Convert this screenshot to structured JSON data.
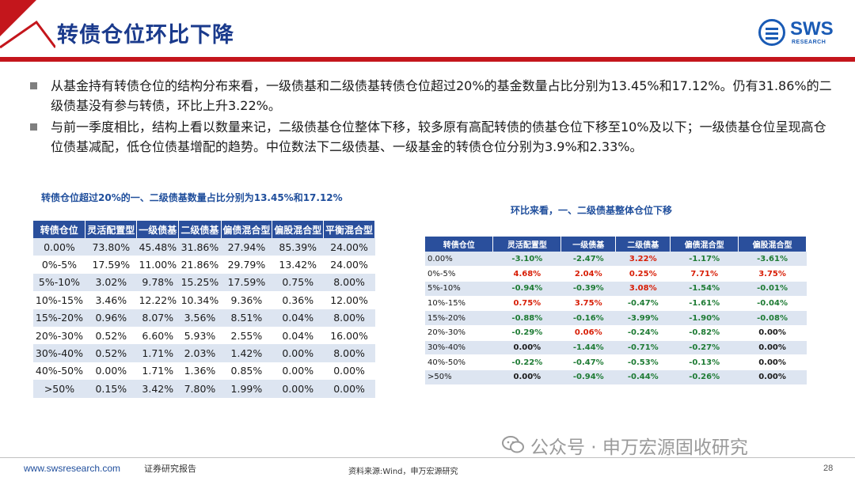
{
  "header": {
    "title": "转债仓位环比下降",
    "logo_text": "SWS",
    "logo_sub": "RESEARCH"
  },
  "bullets": [
    "从基金持有转债仓位的结构分布来看，一级债基和二级债基转债仓位超过20%的基金数量占比分别为13.45%和17.12%。仍有31.86%的二级债基没有参与转债，环比上升3.22%。",
    "与前一季度相比，结构上看以数量来记，二级债基仓位整体下移，较多原有高配转债的债基仓位下移至10%及以下；一级债基仓位呈现高仓位债基减配，低仓位债基增配的趋势。中位数法下二级债基、一级基金的转债仓位分别为3.9%和2.33%。"
  ],
  "left_table": {
    "title": "转债仓位超过20%的一、二级债基数量占比分别为13.45%和17.12%",
    "headers": [
      "转债仓位",
      "灵活配置型",
      "一级债基",
      "二级债基",
      "偏债混合型",
      "偏股混合型",
      "平衡混合型"
    ],
    "rows": [
      [
        "0.00%",
        "73.80%",
        "45.48%",
        "31.86%",
        "27.94%",
        "85.39%",
        "24.00%"
      ],
      [
        "0%-5%",
        "17.59%",
        "11.00%",
        "21.86%",
        "29.79%",
        "13.42%",
        "24.00%"
      ],
      [
        "5%-10%",
        "3.02%",
        "9.78%",
        "15.25%",
        "17.59%",
        "0.75%",
        "8.00%"
      ],
      [
        "10%-15%",
        "3.46%",
        "12.22%",
        "10.34%",
        "9.36%",
        "0.36%",
        "12.00%"
      ],
      [
        "15%-20%",
        "0.96%",
        "8.07%",
        "3.56%",
        "8.51%",
        "0.04%",
        "8.00%"
      ],
      [
        "20%-30%",
        "0.52%",
        "6.60%",
        "5.93%",
        "2.55%",
        "0.04%",
        "16.00%"
      ],
      [
        "30%-40%",
        "0.52%",
        "1.71%",
        "2.03%",
        "1.42%",
        "0.00%",
        "8.00%"
      ],
      [
        "40%-50%",
        "0.00%",
        "1.71%",
        "1.36%",
        "0.85%",
        "0.00%",
        "0.00%"
      ],
      [
        ">50%",
        "0.15%",
        "3.42%",
        "7.80%",
        "1.99%",
        "0.00%",
        "0.00%"
      ]
    ]
  },
  "right_table": {
    "title": "环比来看，一、二级债基整体仓位下移",
    "headers": [
      "转债仓位",
      "灵活配置型",
      "一级债基",
      "二级债基",
      "偏债混合型",
      "偏股混合型"
    ],
    "rows": [
      [
        "0.00%",
        "-3.10%",
        "-2.47%",
        "3.22%",
        "-1.17%",
        "-3.61%"
      ],
      [
        "0%-5%",
        "4.68%",
        "2.04%",
        "0.25%",
        "7.71%",
        "3.75%"
      ],
      [
        "5%-10%",
        "-0.94%",
        "-0.39%",
        "3.08%",
        "-1.54%",
        "-0.01%"
      ],
      [
        "10%-15%",
        "0.75%",
        "3.75%",
        "-0.47%",
        "-1.61%",
        "-0.04%"
      ],
      [
        "15%-20%",
        "-0.88%",
        "-0.16%",
        "-3.99%",
        "-1.90%",
        "-0.08%"
      ],
      [
        "20%-30%",
        "-0.29%",
        "0.06%",
        "-0.24%",
        "-0.82%",
        "0.00%"
      ],
      [
        "30%-40%",
        "0.00%",
        "-1.44%",
        "-0.71%",
        "-0.27%",
        "0.00%"
      ],
      [
        "40%-50%",
        "-0.22%",
        "-0.47%",
        "-0.53%",
        "-0.13%",
        "0.00%"
      ],
      [
        ">50%",
        "0.00%",
        "-0.94%",
        "-0.44%",
        "-0.26%",
        "0.00%"
      ]
    ],
    "positive_color": "#d81e06",
    "negative_color": "#1e7b34",
    "zero_color": "#1a1a1a"
  },
  "footer": {
    "url": "www.swsresearch.com",
    "report_type": "证券研究报告",
    "source": "资料来源:Wind，申万宏源研究",
    "page": "28",
    "watermark": "公众号 · 申万宏源固收研究"
  },
  "colors": {
    "accent_red": "#c4161c",
    "title_blue": "#1a3a8c",
    "table_header": "#2a4f9c",
    "row_alt": "#dde5f1"
  }
}
